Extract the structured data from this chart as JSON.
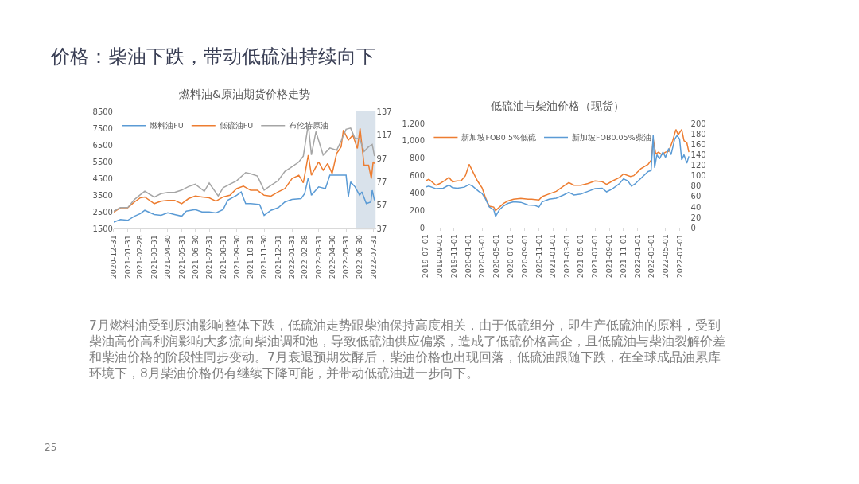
{
  "chart_data": [
    {
      "type": "line",
      "title": "燃料油&原油期货价格走势",
      "legend": "top",
      "grid": false,
      "xlim": [
        "2020-12-31",
        "2022-08-05"
      ],
      "xticks": [
        "2020-12-31",
        "2021-01-31",
        "2021-02-28",
        "2021-03-31",
        "2021-04-30",
        "2021-05-31",
        "2021-06-30",
        "2021-07-31",
        "2021-08-31",
        "2021-09-30",
        "2021-10-31",
        "2021-11-30",
        "2021-12-31",
        "2022-01-31",
        "2022-02-28",
        "2022-03-31",
        "2022-04-30",
        "2022-05-31",
        "2022-06-30",
        "2022-07-31"
      ],
      "ylim": [
        1500,
        8500
      ],
      "yticks": [
        1500,
        2500,
        3500,
        4500,
        5500,
        6500,
        7500,
        8500
      ],
      "y2lim": [
        37,
        137
      ],
      "y2ticks": [
        37,
        57,
        77,
        97,
        117,
        137
      ],
      "bands": [
        {
          "axis": "x",
          "from": "2022-06-24",
          "to": "2022-08-03",
          "color": "#41719c"
        }
      ],
      "series": [
        {
          "name": "燃料油FU",
          "color": "#5b9bd5",
          "x": [
            "2020-12-31",
            "2021-01-15",
            "2021-01-31",
            "2021-02-15",
            "2021-02-28",
            "2021-03-10",
            "2021-03-31",
            "2021-04-15",
            "2021-04-30",
            "2021-05-15",
            "2021-05-31",
            "2021-06-10",
            "2021-06-30",
            "2021-07-15",
            "2021-07-31",
            "2021-08-15",
            "2021-08-31",
            "2021-09-10",
            "2021-09-30",
            "2021-10-10",
            "2021-10-20",
            "2021-10-31",
            "2021-11-20",
            "2021-11-30",
            "2021-12-15",
            "2021-12-31",
            "2022-01-15",
            "2022-01-31",
            "2022-02-20",
            "2022-02-28",
            "2022-03-08",
            "2022-03-15",
            "2022-03-31",
            "2022-04-15",
            "2022-04-25",
            "2022-05-10",
            "2022-05-31",
            "2022-06-05",
            "2022-06-10",
            "2022-06-20",
            "2022-06-30",
            "2022-07-05",
            "2022-07-15",
            "2022-07-25",
            "2022-07-28",
            "2022-08-02"
          ],
          "values": [
            1900,
            2050,
            2000,
            2250,
            2400,
            2600,
            2350,
            2300,
            2450,
            2350,
            2250,
            2550,
            2650,
            2500,
            2500,
            2450,
            2650,
            3200,
            3500,
            3700,
            3000,
            3000,
            2950,
            2300,
            2600,
            2750,
            3100,
            3250,
            3300,
            3600,
            4550,
            3500,
            4000,
            3900,
            4700,
            4700,
            4700,
            3400,
            4300,
            4000,
            3500,
            3700,
            3000,
            3100,
            3800,
            3200
          ]
        },
        {
          "name": "低硫油FU",
          "color": "#ed7d31",
          "x": [
            "2020-12-31",
            "2021-01-15",
            "2021-01-31",
            "2021-02-15",
            "2021-02-28",
            "2021-03-10",
            "2021-03-31",
            "2021-04-15",
            "2021-04-30",
            "2021-05-15",
            "2021-05-31",
            "2021-06-15",
            "2021-06-30",
            "2021-07-15",
            "2021-07-31",
            "2021-08-15",
            "2021-08-31",
            "2021-09-15",
            "2021-09-30",
            "2021-10-15",
            "2021-10-31",
            "2021-11-15",
            "2021-11-30",
            "2021-12-15",
            "2021-12-31",
            "2022-01-15",
            "2022-01-31",
            "2022-02-15",
            "2022-02-25",
            "2022-03-08",
            "2022-03-15",
            "2022-03-31",
            "2022-04-10",
            "2022-04-20",
            "2022-04-30",
            "2022-05-10",
            "2022-05-20",
            "2022-05-25",
            "2022-06-05",
            "2022-06-15",
            "2022-06-25",
            "2022-07-01",
            "2022-07-10",
            "2022-07-20",
            "2022-07-26",
            "2022-07-30",
            "2022-08-02"
          ],
          "values": [
            2500,
            2750,
            2750,
            3100,
            3350,
            3400,
            3000,
            3150,
            3200,
            3200,
            3000,
            3300,
            3450,
            3400,
            3350,
            3150,
            3400,
            3500,
            3900,
            4050,
            3800,
            3800,
            3500,
            3450,
            3700,
            3900,
            4500,
            4700,
            4250,
            5900,
            4700,
            5500,
            5000,
            5400,
            4800,
            6000,
            6400,
            7400,
            6800,
            7100,
            6300,
            7500,
            5300,
            5300,
            4500,
            5500,
            5400
          ]
        },
        {
          "name": "布伦特原油",
          "color": "#a5a5a5",
          "axis": "y2",
          "x": [
            "2020-12-31",
            "2021-01-15",
            "2021-01-31",
            "2021-02-15",
            "2021-02-28",
            "2021-03-10",
            "2021-03-31",
            "2021-04-15",
            "2021-04-30",
            "2021-05-15",
            "2021-05-31",
            "2021-06-15",
            "2021-06-30",
            "2021-07-20",
            "2021-07-31",
            "2021-08-20",
            "2021-08-31",
            "2021-09-15",
            "2021-09-30",
            "2021-10-20",
            "2021-10-31",
            "2021-11-15",
            "2021-11-30",
            "2021-12-15",
            "2021-12-31",
            "2022-01-15",
            "2022-01-31",
            "2022-02-15",
            "2022-02-25",
            "2022-03-08",
            "2022-03-15",
            "2022-03-25",
            "2022-04-10",
            "2022-04-25",
            "2022-05-10",
            "2022-05-20",
            "2022-05-31",
            "2022-06-10",
            "2022-06-20",
            "2022-06-30",
            "2022-07-10",
            "2022-07-20",
            "2022-07-28",
            "2022-08-02"
          ],
          "values": [
            52,
            55,
            55,
            62,
            66,
            69,
            64,
            67,
            68,
            68,
            70,
            73,
            75,
            69,
            76,
            65,
            72,
            75,
            78,
            85,
            84,
            82,
            70,
            74,
            78,
            86,
            90,
            94,
            99,
            126,
            100,
            120,
            100,
            106,
            104,
            112,
            122,
            123,
            114,
            114,
            103,
            107,
            109,
            99
          ]
        }
      ]
    },
    {
      "type": "line",
      "title": "低硫油与柴油价格（现货）",
      "legend": "top",
      "grid": false,
      "xlim": [
        "2019-07-01",
        "2022-08-15"
      ],
      "xticks": [
        "2019-07-01",
        "2019-09-01",
        "2019-11-01",
        "2020-01-01",
        "2020-03-01",
        "2020-05-01",
        "2020-07-01",
        "2020-09-01",
        "2020-11-01",
        "2021-01-01",
        "2021-03-01",
        "2021-05-01",
        "2021-07-01",
        "2021-09-01",
        "2021-11-01",
        "2022-01-01",
        "2022-03-01",
        "2022-05-01",
        "2022-07-01"
      ],
      "ylim": [
        0,
        1200
      ],
      "yticks": [
        0,
        200,
        400,
        600,
        800,
        {
          "value": 1000,
          "label": "1,000"
        },
        {
          "value": 1200,
          "label": "1,200"
        }
      ],
      "y2lim": [
        0,
        200
      ],
      "y2ticks": [
        0,
        20,
        40,
        60,
        80,
        100,
        120,
        140,
        160,
        180,
        200
      ],
      "series": [
        {
          "name": "新加坡FOB0.5%低硫",
          "color": "#ed7d31",
          "x": [
            "2019-07-01",
            "2019-07-15",
            "2019-08-01",
            "2019-08-15",
            "2019-09-01",
            "2019-09-20",
            "2019-10-10",
            "2019-10-25",
            "2019-11-15",
            "2019-12-01",
            "2019-12-20",
            "2020-01-05",
            "2020-01-20",
            "2020-02-10",
            "2020-03-01",
            "2020-03-15",
            "2020-04-01",
            "2020-04-20",
            "2020-04-28",
            "2020-05-15",
            "2020-06-01",
            "2020-06-20",
            "2020-07-15",
            "2020-08-15",
            "2020-09-15",
            "2020-10-01",
            "2020-11-01",
            "2020-11-15",
            "2020-12-15",
            "2021-01-15",
            "2021-02-15",
            "2021-03-10",
            "2021-04-01",
            "2021-05-01",
            "2021-06-01",
            "2021-07-01",
            "2021-08-01",
            "2021-08-20",
            "2021-09-15",
            "2021-10-15",
            "2021-11-01",
            "2021-12-01",
            "2021-12-15",
            "2022-01-15",
            "2022-02-15",
            "2022-03-01",
            "2022-03-09",
            "2022-03-20",
            "2022-04-01",
            "2022-04-15",
            "2022-05-01",
            "2022-05-15",
            "2022-06-01",
            "2022-06-15",
            "2022-06-25",
            "2022-07-10",
            "2022-07-20",
            "2022-08-01",
            "2022-08-10"
          ],
          "values": [
            540,
            560,
            520,
            490,
            510,
            540,
            580,
            530,
            540,
            540,
            600,
            730,
            650,
            540,
            460,
            350,
            250,
            240,
            200,
            240,
            280,
            310,
            330,
            340,
            330,
            330,
            320,
            360,
            390,
            420,
            480,
            520,
            490,
            490,
            510,
            540,
            530,
            500,
            540,
            580,
            620,
            590,
            600,
            680,
            730,
            780,
            1020,
            850,
            870,
            840,
            870,
            880,
            1000,
            1130,
            1070,
            1130,
            1000,
            980,
            870
          ]
        },
        {
          "name": "新加坡FOB0.05%柴油",
          "color": "#5b9bd5",
          "axis": "y2",
          "x": [
            "2019-07-01",
            "2019-07-15",
            "2019-08-15",
            "2019-09-15",
            "2019-10-10",
            "2019-10-25",
            "2019-11-15",
            "2019-12-15",
            "2020-01-05",
            "2020-01-20",
            "2020-02-15",
            "2020-03-01",
            "2020-03-15",
            "2020-04-01",
            "2020-04-20",
            "2020-04-28",
            "2020-05-15",
            "2020-06-01",
            "2020-06-20",
            "2020-07-15",
            "2020-08-15",
            "2020-09-15",
            "2020-10-15",
            "2020-11-01",
            "2020-11-15",
            "2020-12-15",
            "2021-01-15",
            "2021-02-15",
            "2021-03-10",
            "2021-04-01",
            "2021-05-01",
            "2021-06-01",
            "2021-07-01",
            "2021-08-01",
            "2021-08-20",
            "2021-09-15",
            "2021-10-15",
            "2021-11-01",
            "2021-11-20",
            "2021-12-05",
            "2021-12-20",
            "2022-01-15",
            "2022-02-15",
            "2022-02-28",
            "2022-03-09",
            "2022-03-15",
            "2022-03-25",
            "2022-04-05",
            "2022-04-20",
            "2022-05-01",
            "2022-05-15",
            "2022-05-25",
            "2022-06-10",
            "2022-06-20",
            "2022-07-01",
            "2022-07-10",
            "2022-07-20",
            "2022-08-01",
            "2022-08-10"
          ],
          "values": [
            78,
            80,
            75,
            76,
            82,
            77,
            76,
            78,
            83,
            80,
            70,
            66,
            56,
            40,
            35,
            22,
            35,
            42,
            47,
            50,
            49,
            44,
            43,
            40,
            50,
            55,
            57,
            63,
            68,
            63,
            65,
            70,
            75,
            76,
            69,
            75,
            85,
            94,
            90,
            80,
            84,
            95,
            108,
            110,
            177,
            115,
            140,
            132,
            145,
            135,
            152,
            140,
            170,
            177,
            170,
            130,
            140,
            124,
            137
          ]
        }
      ]
    },
    {
      "type": "other",
      "title": "价格：柴油下跌，带动低硫油持续向下",
      "annotations": [
        "7月燃料油受到原油影响整体下跌，低硫油走势跟柴油保持高度相关，由于低硫组分，即生产低硫油的原料，受到柴油高价高利润影响大多流向柴油调和池，导致低硫油供应偏紧，造成了低硫价格高企，且低硫油与柴油裂解价差和柴油价格的阶段性同步变动。7月衰退预期发酵后，柴油价格也出现回落，低硫油跟随下跌，在全球成品油累库环境下，8月柴油价格仍有继续下降可能，并带动低硫油进一步向下。",
        "25"
      ]
    }
  ]
}
